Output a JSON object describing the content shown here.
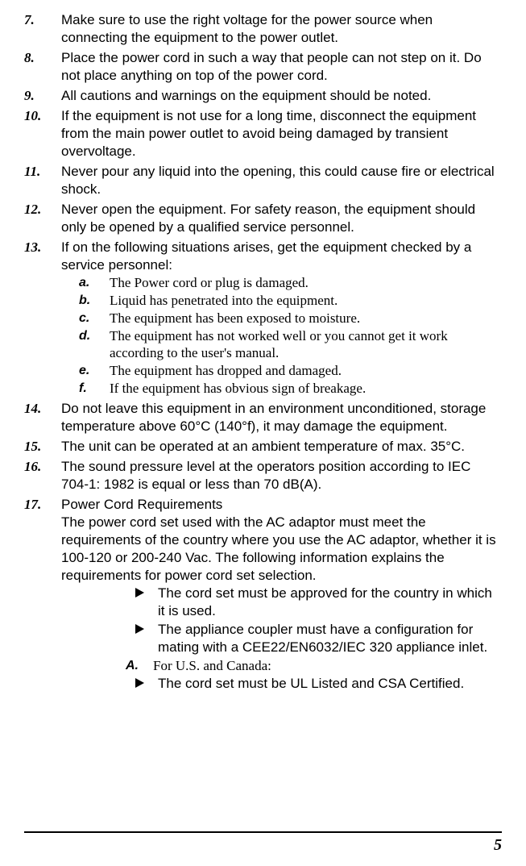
{
  "pageNumber": "5",
  "items": [
    {
      "n": "7.",
      "t": "Make sure to use the right voltage for the power source when connecting the equipment to the power outlet."
    },
    {
      "n": "8.",
      "t": "Place the power cord in such a way that people can not step on it.  Do not place anything on top of the power cord."
    },
    {
      "n": "9.",
      "t": "All cautions and warnings on the equipment should be noted."
    },
    {
      "n": "10.",
      "t": "If the equipment is not use for a long time, disconnect the equipment from the main power outlet to avoid being damaged by transient overvoltage."
    },
    {
      "n": "11.",
      "t": "Never pour any liquid into the opening, this could cause fire or electrical shock."
    },
    {
      "n": "12.",
      "t": "Never open the equipment. For safety reason, the equipment should only be opened by a qualified service personnel."
    },
    {
      "n": "13.",
      "t": "If on the following situations arises, get the equipment checked by a service personnel:"
    }
  ],
  "sub13": [
    {
      "l": "a.",
      "t": "The Power cord or plug is damaged."
    },
    {
      "l": "b.",
      "t": "Liquid has penetrated into the equipment."
    },
    {
      "l": "c.",
      "t": "The equipment has been exposed to moisture."
    },
    {
      "l": "d.",
      "t": "The equipment has not worked well or you cannot get it work according to the user's manual."
    },
    {
      "l": "e.",
      "t": "The equipment has dropped and damaged."
    },
    {
      "l": "f.",
      "t": "If the equipment has obvious sign of breakage."
    }
  ],
  "items2": [
    {
      "n": "14.",
      "t": "Do not leave this equipment in an environment unconditioned, storage temperature above 60°C (140°f), it may damage the equipment."
    },
    {
      "n": "15.",
      "t": "The unit can be operated at an ambient temperature of max. 35°C."
    },
    {
      "n": "16.",
      "t": "The sound pressure level at the operators position according to IEC 704-1: 1982 is equal or less than 70 dB(A)."
    },
    {
      "n": "17.",
      "title": "Power Cord Requirements",
      "t": "The power cord set used with the AC adaptor must meet the requirements of the country where you use the AC adaptor, whether it is 100-120 or 200-240 Vac. The following information explains the requirements for power cord set selection."
    }
  ],
  "bullets17": [
    "The cord set must be approved for the country in which it is used.",
    "The appliance coupler must have a configuration for mating with a CEE22/EN6032/IEC 320 appliance inlet."
  ],
  "regionA": {
    "l": "A.",
    "t": "For U.S. and Canada:"
  },
  "bulletsA": [
    "The cord set must be UL Listed and CSA Certified."
  ]
}
